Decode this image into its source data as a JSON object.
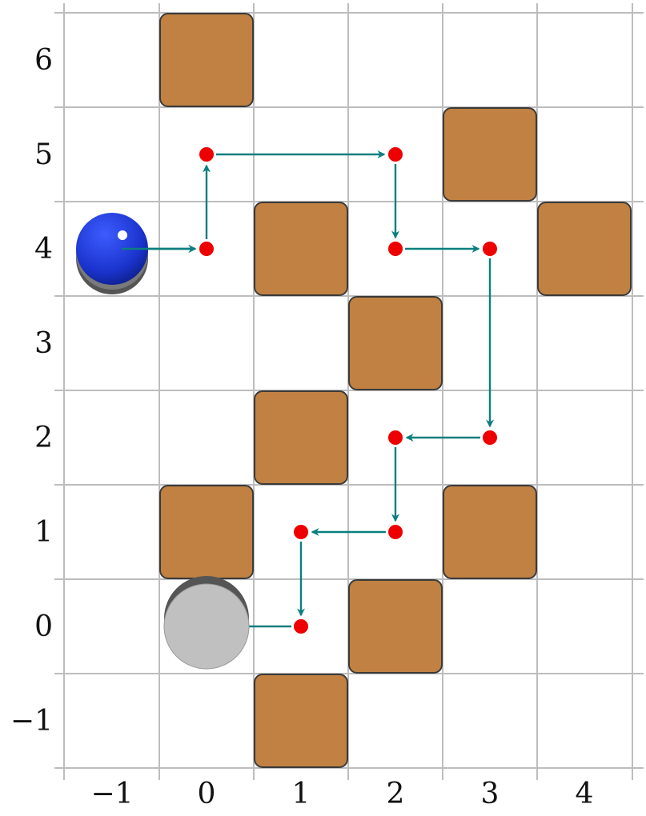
{
  "board": {
    "x_ticks": [
      "−1",
      "0",
      "1",
      "2",
      "3",
      "4"
    ],
    "y_ticks": [
      "6",
      "5",
      "4",
      "3",
      "2",
      "1",
      "0",
      "−1"
    ],
    "obstacles": [
      [
        0,
        6
      ],
      [
        3,
        5
      ],
      [
        1,
        4
      ],
      [
        4,
        4
      ],
      [
        2,
        3
      ],
      [
        1,
        2
      ],
      [
        0,
        1
      ],
      [
        3,
        1
      ],
      [
        2,
        0
      ],
      [
        1,
        -1
      ]
    ],
    "start": [
      -1,
      4
    ],
    "goal": [
      0,
      0
    ],
    "path": [
      [
        0,
        4
      ],
      [
        0,
        5
      ],
      [
        2,
        5
      ],
      [
        2,
        4
      ],
      [
        3,
        4
      ],
      [
        3,
        2
      ],
      [
        2,
        2
      ],
      [
        2,
        1
      ],
      [
        1,
        1
      ],
      [
        1,
        0
      ]
    ],
    "colors": {
      "grid": "#bdbdbd",
      "obstacle_fill": "#c08142",
      "obstacle_stroke": "#3a3a3a",
      "waypoint": "#ee0000",
      "arrow": "#0b7f7f",
      "start_ball": "#1a33cc",
      "goal_disc": "#c0c0c0"
    }
  }
}
